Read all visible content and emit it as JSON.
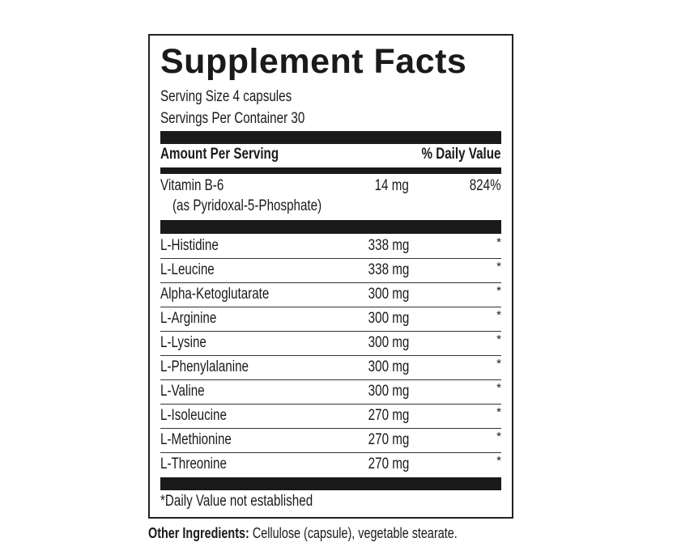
{
  "title": "Supplement Facts",
  "serving_size": "Serving Size 4 capsules",
  "servings_per_container": "Servings Per Container 30",
  "header": {
    "amount": "Amount Per Serving",
    "dv": "% Daily Value"
  },
  "vitamin": {
    "name": "Vitamin B-6",
    "sub": "(as Pyridoxal-5-Phosphate)",
    "amount": "14 mg",
    "dv": "824%"
  },
  "rows": [
    {
      "name": "L-Histidine",
      "amount": "338 mg",
      "dv": "*"
    },
    {
      "name": "L-Leucine",
      "amount": "338 mg",
      "dv": "*"
    },
    {
      "name": "Alpha-Ketoglutarate",
      "amount": "300 mg",
      "dv": "*"
    },
    {
      "name": "L-Arginine",
      "amount": "300 mg",
      "dv": "*"
    },
    {
      "name": "L-Lysine",
      "amount": "300 mg",
      "dv": "*"
    },
    {
      "name": "L-Phenylalanine",
      "amount": "300 mg",
      "dv": "*"
    },
    {
      "name": "L-Valine",
      "amount": "300 mg",
      "dv": "*"
    },
    {
      "name": "L-Isoleucine",
      "amount": "270 mg",
      "dv": "*"
    },
    {
      "name": "L-Methionine",
      "amount": "270 mg",
      "dv": "*"
    },
    {
      "name": "L-Threonine",
      "amount": "270 mg",
      "dv": "*"
    }
  ],
  "footnote": "*Daily Value not established",
  "other": {
    "label": "Other Ingredients:",
    "text": " Cellulose (capsule), vegetable stearate."
  }
}
